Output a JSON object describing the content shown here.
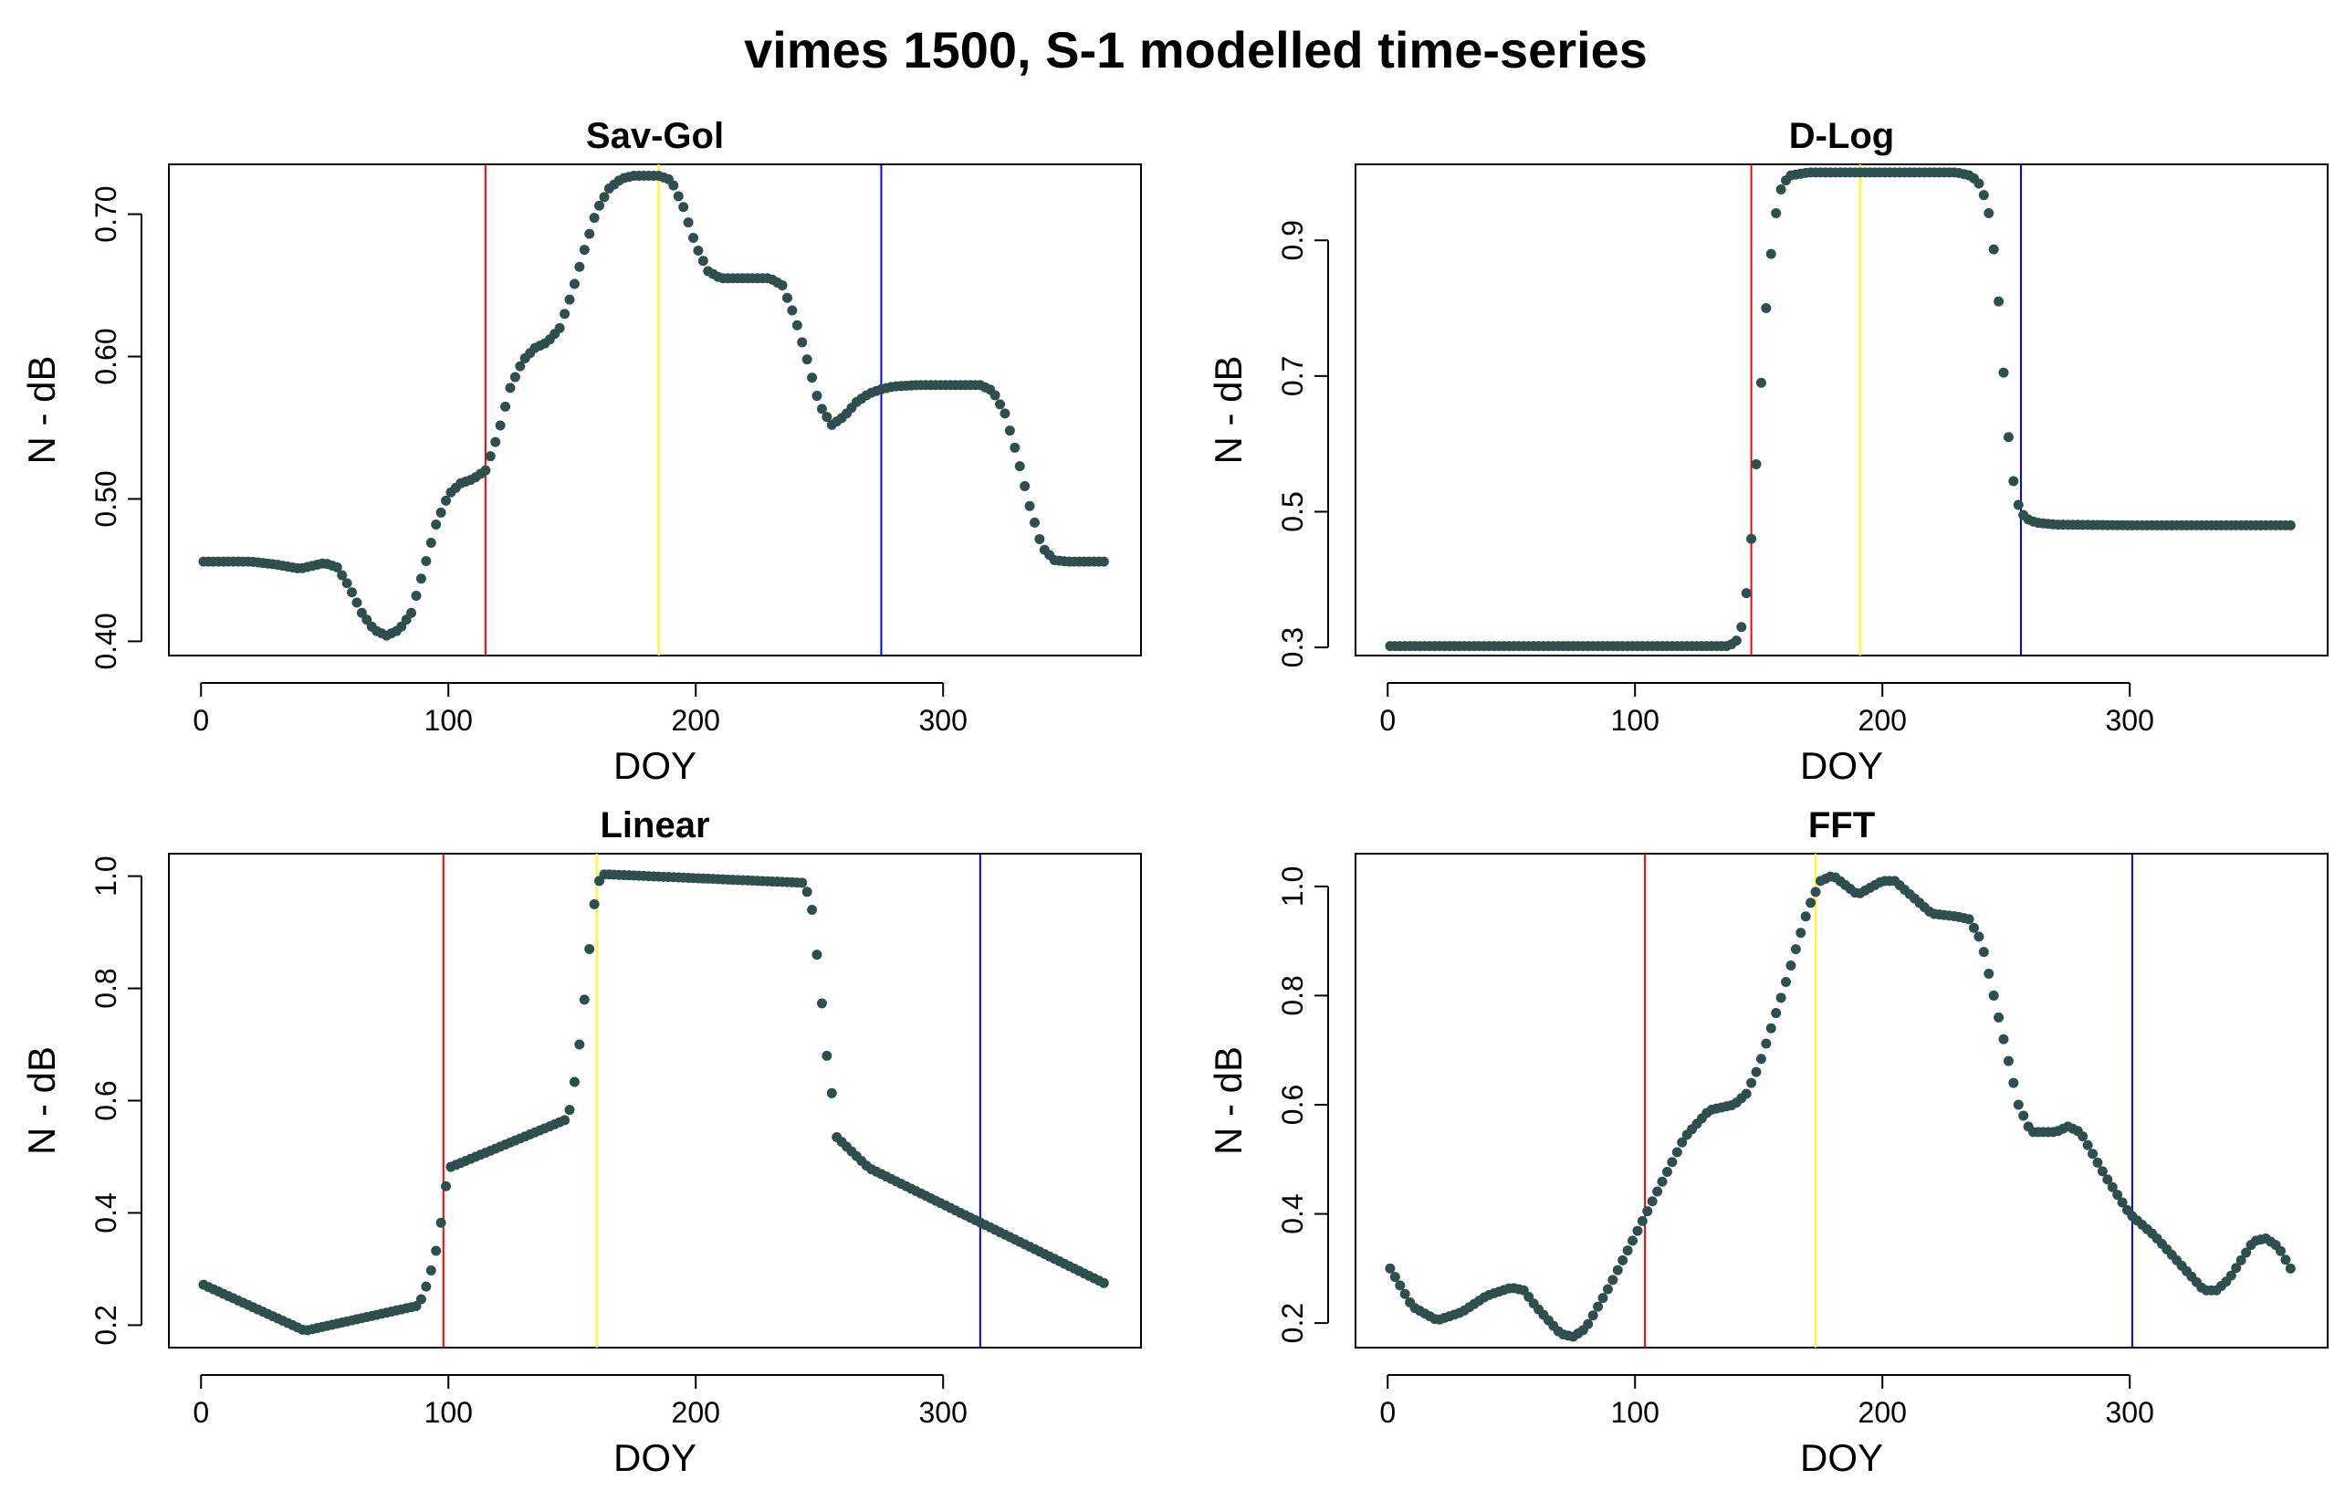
{
  "figure": {
    "title": "vimes 1500, S-1 modelled time-series",
    "point_color": "#2f4f4f",
    "marker_colors": {
      "start": "#ff0000",
      "peak": "#ffff00",
      "end": "#0000ff"
    }
  },
  "chart_data": [
    {
      "type": "scatter",
      "title": "Sav-Gol",
      "xlabel": "DOY",
      "ylabel": "N - dB",
      "xlim": [
        -13,
        380
      ],
      "ylim": [
        0.39,
        0.735
      ],
      "xticks": [
        0,
        100,
        200,
        300
      ],
      "yticks": [
        0.4,
        0.5,
        0.6,
        0.7
      ],
      "ytick_labels": [
        "0.40",
        "0.50",
        "0.60",
        "0.70"
      ],
      "vlines": [
        {
          "x": 115,
          "color": "#ff0000"
        },
        {
          "x": 185,
          "color": "#ffff00"
        },
        {
          "x": 275,
          "color": "#0000ff"
        }
      ],
      "series": [
        {
          "name": "Sav-Gol",
          "x": [
            1,
            20,
            30,
            40,
            50,
            55,
            60,
            65,
            70,
            75,
            80,
            85,
            90,
            95,
            100,
            105,
            110,
            115,
            120,
            125,
            130,
            135,
            140,
            145,
            150,
            155,
            160,
            165,
            170,
            175,
            180,
            185,
            190,
            195,
            200,
            205,
            210,
            220,
            230,
            235,
            240,
            245,
            250,
            255,
            260,
            265,
            270,
            275,
            280,
            290,
            300,
            310,
            315,
            320,
            325,
            330,
            335,
            340,
            345,
            350,
            355,
            365
          ],
          "y": [
            0.456,
            0.456,
            0.454,
            0.451,
            0.455,
            0.452,
            0.438,
            0.42,
            0.408,
            0.404,
            0.408,
            0.42,
            0.45,
            0.482,
            0.503,
            0.511,
            0.514,
            0.52,
            0.545,
            0.578,
            0.597,
            0.606,
            0.61,
            0.62,
            0.645,
            0.675,
            0.703,
            0.718,
            0.725,
            0.727,
            0.727,
            0.727,
            0.724,
            0.705,
            0.678,
            0.66,
            0.655,
            0.655,
            0.655,
            0.65,
            0.628,
            0.598,
            0.566,
            0.552,
            0.558,
            0.568,
            0.574,
            0.577,
            0.579,
            0.58,
            0.58,
            0.58,
            0.58,
            0.576,
            0.56,
            0.53,
            0.495,
            0.466,
            0.457,
            0.456,
            0.456,
            0.456
          ]
        }
      ]
    },
    {
      "type": "scatter",
      "title": "D-Log",
      "xlabel": "DOY",
      "ylabel": "N - dB",
      "xlim": [
        -13,
        380
      ],
      "ylim": [
        0.288,
        1.012
      ],
      "xticks": [
        0,
        100,
        200,
        300
      ],
      "yticks": [
        0.3,
        0.5,
        0.7,
        0.9
      ],
      "ytick_labels": [
        "0.3",
        "0.5",
        "0.7",
        "0.9"
      ],
      "vlines": [
        {
          "x": 147,
          "color": "#ff0000"
        },
        {
          "x": 191,
          "color": "#ffff00"
        },
        {
          "x": 256,
          "color": "#0000ff"
        }
      ],
      "series": [
        {
          "name": "D-Log",
          "x": [
            1,
            120,
            138,
            141,
            143,
            145,
            147,
            149,
            151,
            153,
            155,
            157,
            159,
            162,
            170,
            200,
            230,
            236,
            240,
            243,
            246,
            248,
            250,
            252,
            254,
            256,
            258,
            262,
            270,
            300,
            365
          ],
          "y": [
            0.302,
            0.302,
            0.302,
            0.31,
            0.33,
            0.38,
            0.46,
            0.57,
            0.69,
            0.8,
            0.88,
            0.94,
            0.975,
            0.995,
            1.0,
            1.0,
            1.0,
            0.995,
            0.98,
            0.94,
            0.86,
            0.76,
            0.65,
            0.57,
            0.52,
            0.5,
            0.49,
            0.484,
            0.481,
            0.48,
            0.48
          ]
        }
      ]
    },
    {
      "type": "scatter",
      "title": "Linear",
      "xlabel": "DOY",
      "ylabel": "N - dB",
      "xlim": [
        -13,
        380
      ],
      "ylim": [
        0.16,
        1.04
      ],
      "xticks": [
        0,
        100,
        200,
        300
      ],
      "yticks": [
        0.2,
        0.4,
        0.6,
        0.8,
        1.0
      ],
      "ytick_labels": [
        "0.2",
        "0.4",
        "0.6",
        "0.8",
        "1.0"
      ],
      "vlines": [
        {
          "x": 98,
          "color": "#ff0000"
        },
        {
          "x": 160,
          "color": "#ffff00"
        },
        {
          "x": 315,
          "color": "#0000ff"
        }
      ],
      "series": [
        {
          "name": "Linear",
          "x": [
            1,
            42,
            88,
            92,
            96,
            100,
            148,
            150,
            153,
            156,
            158,
            160,
            162,
            165,
            244,
            247,
            250,
            253,
            256,
            257,
            270,
            365
          ],
          "y": [
            0.272,
            0.19,
            0.235,
            0.28,
            0.35,
            0.48,
            0.567,
            0.6,
            0.7,
            0.82,
            0.92,
            0.98,
            1.003,
            1.003,
            0.988,
            0.94,
            0.82,
            0.68,
            0.58,
            0.535,
            0.48,
            0.275
          ]
        }
      ]
    },
    {
      "type": "scatter",
      "title": "FFT",
      "xlabel": "DOY",
      "ylabel": "N - dB",
      "xlim": [
        -13,
        380
      ],
      "ylim": [
        0.155,
        1.06
      ],
      "xticks": [
        0,
        100,
        200,
        300
      ],
      "yticks": [
        0.2,
        0.4,
        0.6,
        0.8,
        1.0
      ],
      "ytick_labels": [
        "0.2",
        "0.4",
        "0.6",
        "0.8",
        "1.0"
      ],
      "vlines": [
        {
          "x": 104,
          "color": "#ff0000"
        },
        {
          "x": 173,
          "color": "#ffff00"
        },
        {
          "x": 301,
          "color": "#0000ff"
        }
      ],
      "series": [
        {
          "name": "FFT",
          "x": [
            1,
            10,
            20,
            30,
            40,
            50,
            55,
            60,
            70,
            75,
            80,
            90,
            100,
            110,
            120,
            130,
            140,
            145,
            150,
            160,
            170,
            175,
            180,
            190,
            200,
            205,
            210,
            220,
            230,
            235,
            240,
            250,
            255,
            260,
            270,
            275,
            280,
            290,
            300,
            310,
            320,
            330,
            335,
            340,
            350,
            355,
            360,
            365
          ],
          "y": [
            0.3,
            0.23,
            0.205,
            0.22,
            0.25,
            0.265,
            0.26,
            0.23,
            0.18,
            0.175,
            0.19,
            0.27,
            0.36,
            0.45,
            0.54,
            0.59,
            0.6,
            0.62,
            0.67,
            0.81,
            0.96,
            1.01,
            1.02,
            0.985,
            1.01,
            1.01,
            0.99,
            0.95,
            0.945,
            0.94,
            0.9,
            0.7,
            0.6,
            0.55,
            0.55,
            0.56,
            0.55,
            0.47,
            0.4,
            0.36,
            0.31,
            0.26,
            0.26,
            0.28,
            0.35,
            0.355,
            0.34,
            0.3
          ]
        }
      ]
    }
  ]
}
